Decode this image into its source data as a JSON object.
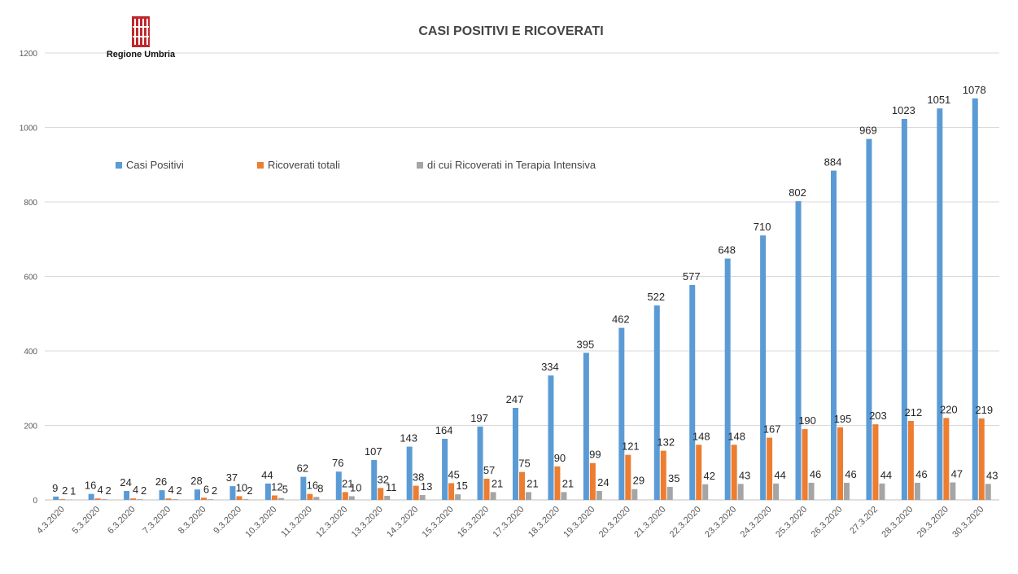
{
  "logo": {
    "text": "Regione Umbria",
    "name": "regione-umbria-logo"
  },
  "chart_data": {
    "type": "bar",
    "title": "CASI POSITIVI E RICOVERATI",
    "xlabel": "",
    "ylabel": "",
    "ylim": [
      0,
      1200
    ],
    "yticks": [
      0,
      200,
      400,
      600,
      800,
      1000,
      1200
    ],
    "grid": true,
    "legend_position": "top-left",
    "categories": [
      "4.3.2020",
      "5.3.2020",
      "6.3.2020",
      "7.3.2020",
      "8.3.2020",
      "9.3.2020",
      "10.3.2020",
      "11.3.2020",
      "12.3.2020",
      "13.3.2020",
      "14.3.2020",
      "15.3.2020",
      "16.3.2020",
      "17.3.2020",
      "18.3.2020",
      "19.3.2020",
      "20.3.2020",
      "21.3.2020",
      "22.3.2020",
      "23.3.2020",
      "24.3.2020",
      "25.3.2020",
      "26.3.2020",
      "27.3.202",
      "28.3.2020",
      "29.3.2020",
      "30.3.2020"
    ],
    "series": [
      {
        "name": "Casi Positivi",
        "color": "#5b9bd5",
        "values": [
          9,
          16,
          24,
          26,
          28,
          37,
          44,
          62,
          76,
          107,
          143,
          164,
          197,
          247,
          334,
          395,
          462,
          522,
          577,
          648,
          710,
          802,
          884,
          969,
          1023,
          1051,
          1078
        ]
      },
      {
        "name": "Ricoverati totali",
        "color": "#ed7d31",
        "values": [
          2,
          4,
          4,
          4,
          6,
          10,
          12,
          16,
          21,
          32,
          38,
          45,
          57,
          75,
          90,
          99,
          121,
          132,
          148,
          148,
          167,
          190,
          195,
          203,
          212,
          220,
          219
        ]
      },
      {
        "name": "di cui Ricoverati in Terapia Intensiva",
        "color": "#a5a5a5",
        "values": [
          1,
          2,
          2,
          2,
          2,
          2,
          5,
          8,
          10,
          11,
          13,
          15,
          21,
          21,
          21,
          24,
          29,
          35,
          42,
          43,
          44,
          46,
          46,
          44,
          46,
          47,
          43
        ]
      }
    ]
  }
}
